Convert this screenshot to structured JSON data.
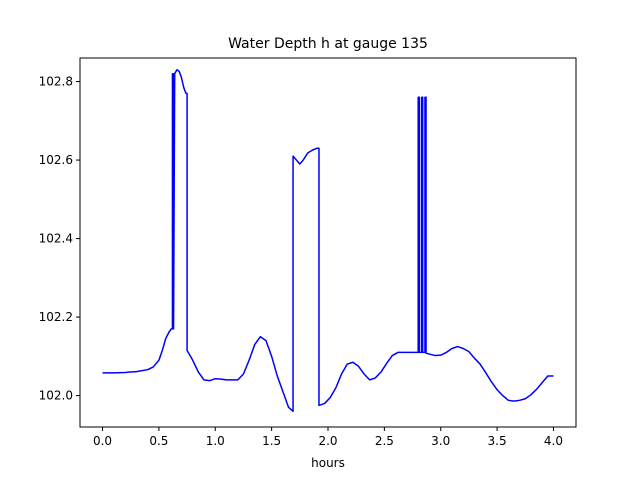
{
  "chart_data": {
    "type": "line",
    "title": "Water Depth h at gauge 135",
    "xlabel": "hours",
    "ylabel": "",
    "xlim": [
      -0.2,
      4.2
    ],
    "ylim": [
      101.92,
      102.86
    ],
    "xticks": [
      0.0,
      0.5,
      1.0,
      1.5,
      2.0,
      2.5,
      3.0,
      3.5,
      4.0
    ],
    "xtick_labels": [
      "0.0",
      "0.5",
      "1.0",
      "1.5",
      "2.0",
      "2.5",
      "3.0",
      "3.5",
      "4.0"
    ],
    "yticks": [
      102.0,
      102.2,
      102.4,
      102.6,
      102.8
    ],
    "ytick_labels": [
      "102.0",
      "102.2",
      "102.4",
      "102.6",
      "102.8"
    ],
    "grid": false,
    "series": [
      {
        "color": "#0000ff",
        "x": [
          0.0,
          0.1,
          0.2,
          0.3,
          0.4,
          0.45,
          0.5,
          0.53,
          0.56,
          0.59,
          0.61,
          0.62,
          0.62,
          0.63,
          0.63,
          0.64,
          0.66,
          0.68,
          0.7,
          0.72,
          0.74,
          0.75,
          0.75,
          0.76,
          0.8,
          0.85,
          0.9,
          0.95,
          1.0,
          1.05,
          1.1,
          1.2,
          1.25,
          1.3,
          1.35,
          1.4,
          1.45,
          1.5,
          1.55,
          1.6,
          1.65,
          1.69,
          1.69,
          1.72,
          1.75,
          1.78,
          1.82,
          1.86,
          1.9,
          1.92,
          1.92,
          1.97,
          2.02,
          2.07,
          2.12,
          2.17,
          2.22,
          2.27,
          2.32,
          2.37,
          2.42,
          2.47,
          2.52,
          2.57,
          2.62,
          2.67,
          2.72,
          2.76,
          2.8,
          2.8,
          2.81,
          2.81,
          2.83,
          2.83,
          2.84,
          2.84,
          2.86,
          2.86,
          2.87,
          2.87,
          2.95,
          3.0,
          3.05,
          3.1,
          3.15,
          3.2,
          3.25,
          3.3,
          3.35,
          3.4,
          3.45,
          3.5,
          3.55,
          3.6,
          3.65,
          3.7,
          3.75,
          3.8,
          3.85,
          3.9,
          3.95,
          4.0
        ],
        "y": [
          102.058,
          102.058,
          102.059,
          102.061,
          102.066,
          102.073,
          102.09,
          102.115,
          102.145,
          102.162,
          102.17,
          102.17,
          102.82,
          102.82,
          102.17,
          102.82,
          102.83,
          102.826,
          102.81,
          102.785,
          102.77,
          102.77,
          102.115,
          102.11,
          102.09,
          102.06,
          102.04,
          102.038,
          102.043,
          102.042,
          102.04,
          102.04,
          102.055,
          102.09,
          102.13,
          102.15,
          102.14,
          102.1,
          102.05,
          102.01,
          101.97,
          101.96,
          102.61,
          102.6,
          102.59,
          102.6,
          102.618,
          102.625,
          102.63,
          102.63,
          101.975,
          101.98,
          101.995,
          102.02,
          102.055,
          102.08,
          102.085,
          102.075,
          102.055,
          102.04,
          102.045,
          102.06,
          102.082,
          102.102,
          102.11,
          102.11,
          102.11,
          102.11,
          102.11,
          102.76,
          102.76,
          102.11,
          102.11,
          102.76,
          102.76,
          102.11,
          102.11,
          102.76,
          102.76,
          102.108,
          102.102,
          102.103,
          102.11,
          102.12,
          102.125,
          102.12,
          102.112,
          102.095,
          102.08,
          102.058,
          102.035,
          102.015,
          102.0,
          101.988,
          101.986,
          101.988,
          101.992,
          102.002,
          102.016,
          102.033,
          102.05,
          102.05
        ]
      }
    ]
  }
}
